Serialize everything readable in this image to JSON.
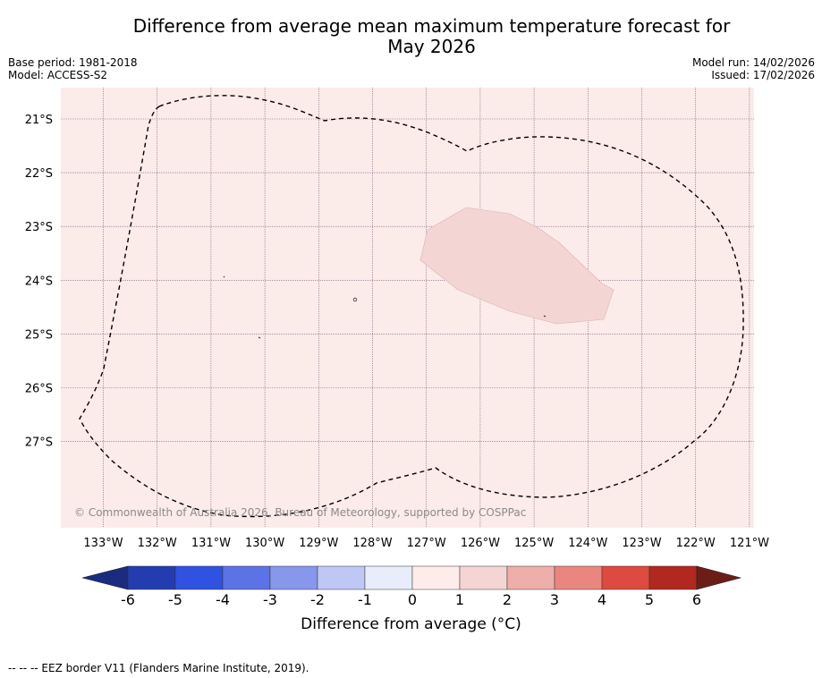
{
  "header": {
    "title_line1": "Difference from average mean maximum temperature forecast for",
    "title_line2": "May 2026",
    "base_period": "Base period: 1981-2018",
    "model": "Model: ACCESS-S2",
    "model_run": "Model run: 14/02/2026",
    "issued": "Issued: 17/02/2026"
  },
  "map": {
    "lat_labels": [
      "21°S",
      "22°S",
      "23°S",
      "24°S",
      "25°S",
      "26°S",
      "27°S"
    ],
    "lon_labels": [
      "133°W",
      "132°W",
      "131°W",
      "130°W",
      "129°W",
      "128°W",
      "127°W",
      "126°W",
      "125°W",
      "124°W",
      "123°W",
      "122°W",
      "121°W"
    ],
    "copyright": "© Commonwealth of Australia 2026, Bureau of Meteorology, supported by COSPPac",
    "background_color": "#fbebe9",
    "anomaly_patch_color": "#f3d6d4"
  },
  "colorbar": {
    "ticks": [
      "-6",
      "-5",
      "-4",
      "-3",
      "-2",
      "-1",
      "0",
      "1",
      "2",
      "3",
      "4",
      "5",
      "6"
    ],
    "colors": [
      "#233db0",
      "#2f52e0",
      "#5c73e6",
      "#8797ec",
      "#bfc7f4",
      "#e8ecfb",
      "#fdecea",
      "#f5d5d3",
      "#eeaea9",
      "#e8867f",
      "#dc4a40",
      "#b0281f"
    ],
    "under_color": "#1b2b80",
    "over_color": "#6d1d17",
    "label": "Difference from average (°C)"
  },
  "footnote": "--  --  -- EEZ border V11 (Flanders Marine Institute, 2019)."
}
